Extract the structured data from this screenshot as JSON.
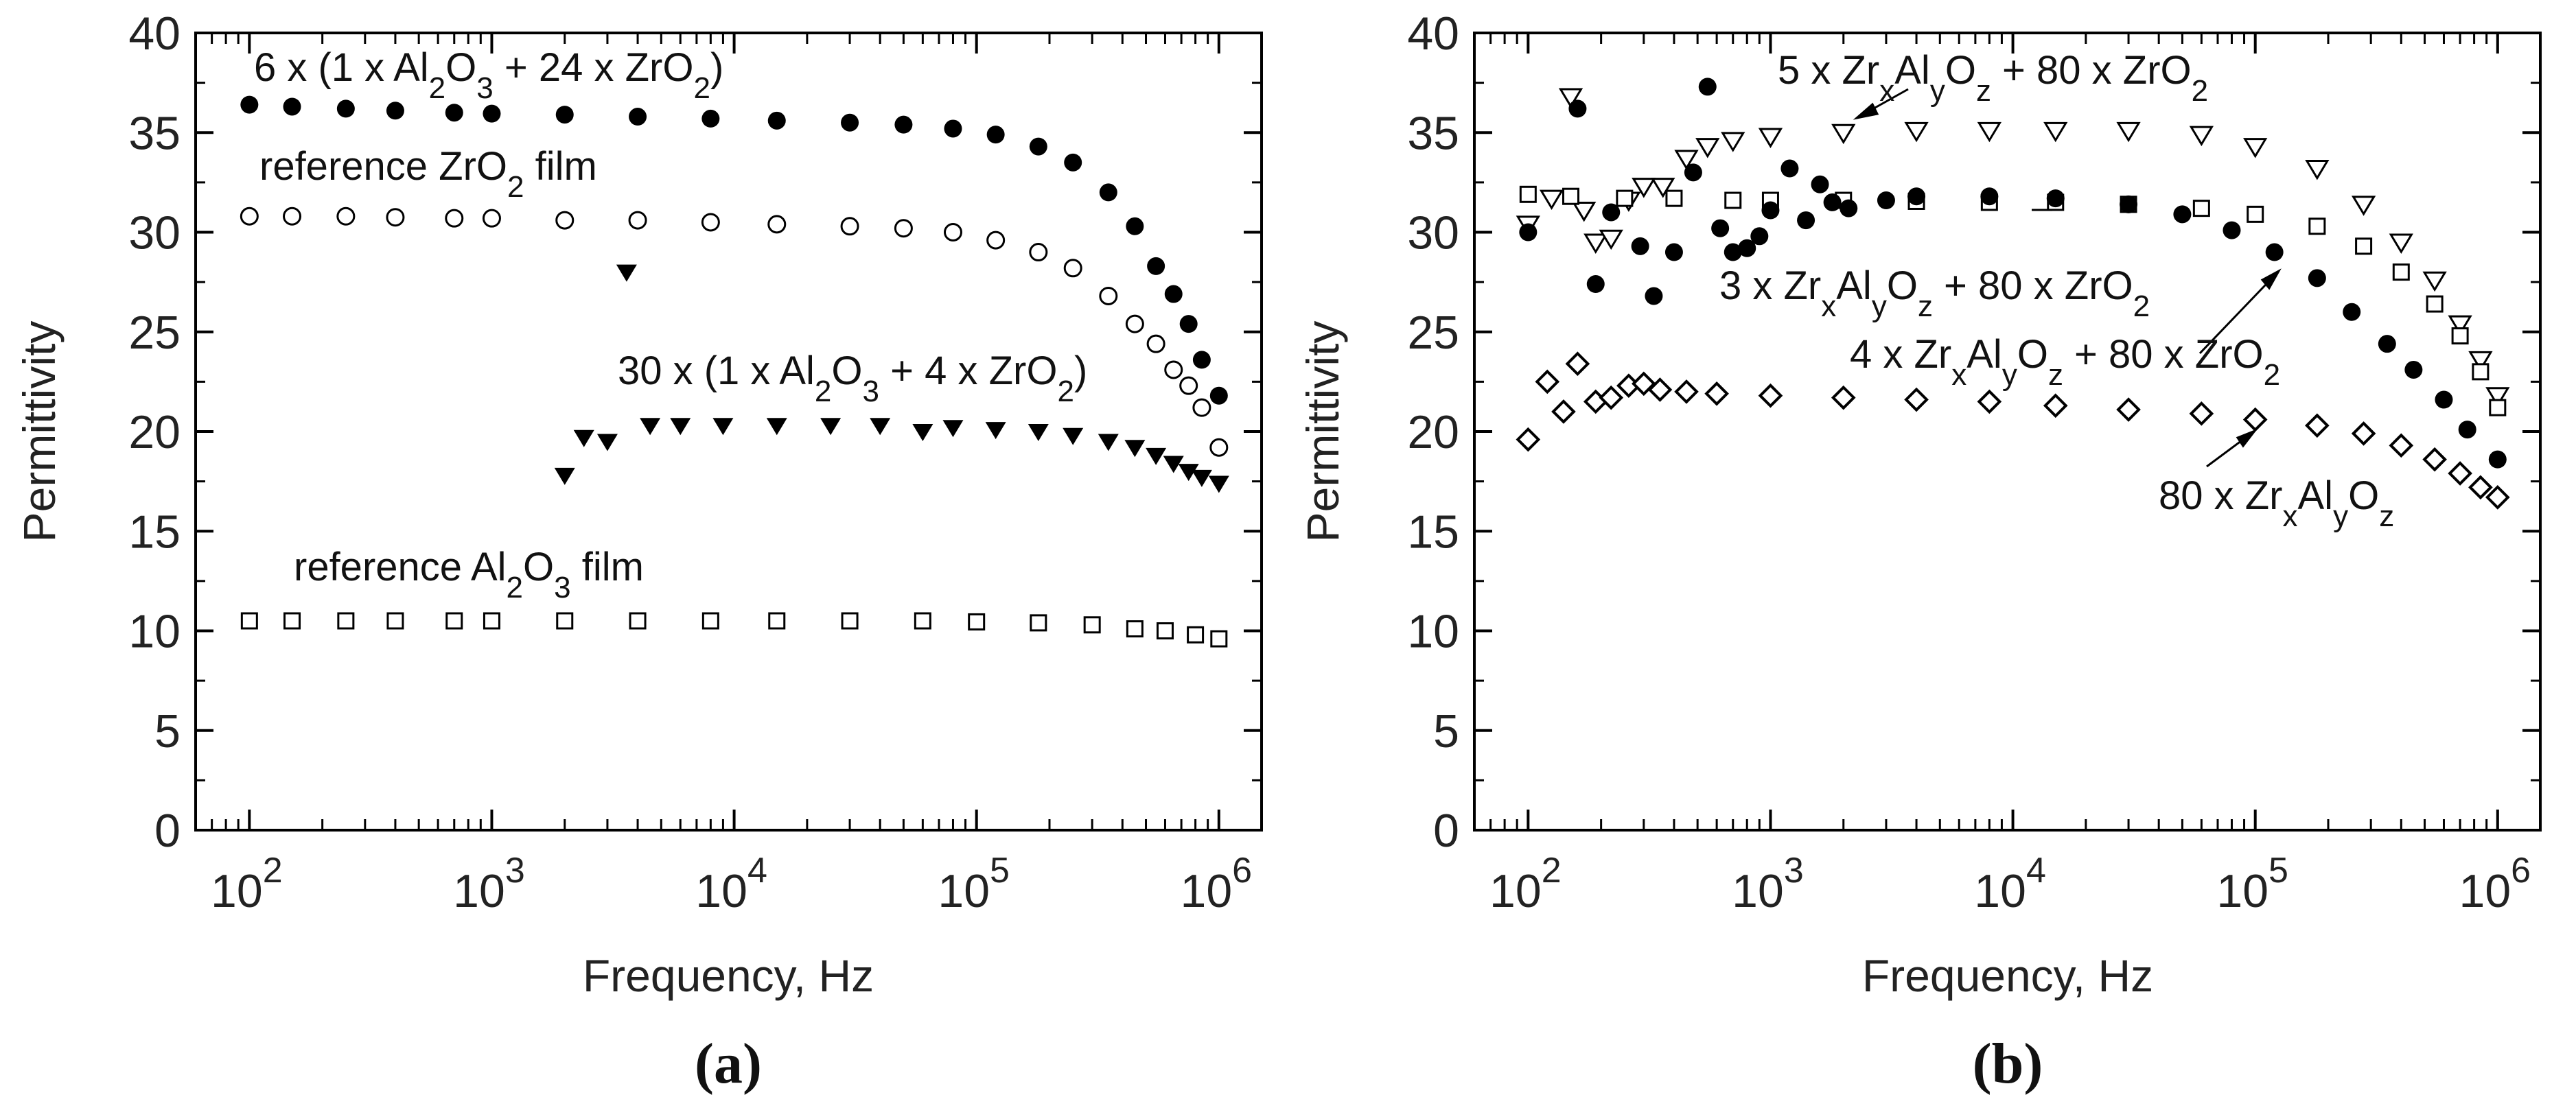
{
  "chart_data": [
    {
      "type": "scatter",
      "panel_label": "(a)",
      "xlabel": "Frequency, Hz",
      "ylabel": "Permittivity",
      "xscale": "log",
      "xlim": [
        60,
        1500000
      ],
      "ylim": [
        0,
        40
      ],
      "yticks": [
        0,
        5,
        10,
        15,
        20,
        25,
        30,
        35,
        40
      ],
      "xticks": [
        {
          "value": 100,
          "base": "10",
          "exp": "2"
        },
        {
          "value": 1000,
          "base": "10",
          "exp": "3"
        },
        {
          "value": 10000,
          "base": "10",
          "exp": "4"
        },
        {
          "value": 100000,
          "base": "10",
          "exp": "5"
        },
        {
          "value": 1000000,
          "base": "10",
          "exp": "6"
        }
      ],
      "series": [
        {
          "name": "6 x (1 x Al2O3 + 24 x ZrO2)",
          "marker": "filled-circle",
          "points": [
            [
              100,
              36.4
            ],
            [
              150,
              36.3
            ],
            [
              250,
              36.2
            ],
            [
              400,
              36.1
            ],
            [
              700,
              36.0
            ],
            [
              1000,
              35.95
            ],
            [
              2000,
              35.9
            ],
            [
              4000,
              35.8
            ],
            [
              8000,
              35.7
            ],
            [
              15000,
              35.6
            ],
            [
              30000,
              35.5
            ],
            [
              50000,
              35.4
            ],
            [
              80000,
              35.2
            ],
            [
              120000,
              34.9
            ],
            [
              180000,
              34.3
            ],
            [
              250000,
              33.5
            ],
            [
              350000,
              32.0
            ],
            [
              450000,
              30.3
            ],
            [
              550000,
              28.3
            ],
            [
              650000,
              26.9
            ],
            [
              750000,
              25.4
            ],
            [
              850000,
              23.6
            ],
            [
              1000000,
              21.8
            ]
          ]
        },
        {
          "name": "reference ZrO2 film",
          "marker": "open-circle",
          "points": [
            [
              100,
              30.8
            ],
            [
              150,
              30.8
            ],
            [
              250,
              30.8
            ],
            [
              400,
              30.75
            ],
            [
              700,
              30.7
            ],
            [
              1000,
              30.7
            ],
            [
              2000,
              30.6
            ],
            [
              4000,
              30.6
            ],
            [
              8000,
              30.5
            ],
            [
              15000,
              30.4
            ],
            [
              30000,
              30.3
            ],
            [
              50000,
              30.2
            ],
            [
              80000,
              30.0
            ],
            [
              120000,
              29.6
            ],
            [
              180000,
              29.0
            ],
            [
              250000,
              28.2
            ],
            [
              350000,
              26.8
            ],
            [
              450000,
              25.4
            ],
            [
              550000,
              24.4
            ],
            [
              650000,
              23.1
            ],
            [
              750000,
              22.3
            ],
            [
              850000,
              21.2
            ],
            [
              1000000,
              19.2
            ]
          ]
        },
        {
          "name": "30 x (1 x Al2O3 + 4 x ZrO2)",
          "marker": "filled-triangle-down",
          "points": [
            [
              2000,
              17.8
            ],
            [
              2400,
              19.7
            ],
            [
              3000,
              19.5
            ],
            [
              3600,
              28.0
            ],
            [
              4500,
              20.3
            ],
            [
              6000,
              20.3
            ],
            [
              9000,
              20.3
            ],
            [
              15000,
              20.3
            ],
            [
              25000,
              20.3
            ],
            [
              40000,
              20.3
            ],
            [
              60000,
              20.0
            ],
            [
              80000,
              20.2
            ],
            [
              120000,
              20.1
            ],
            [
              180000,
              20.0
            ],
            [
              250000,
              19.8
            ],
            [
              350000,
              19.5
            ],
            [
              450000,
              19.2
            ],
            [
              550000,
              18.8
            ],
            [
              650000,
              18.4
            ],
            [
              750000,
              18.0
            ],
            [
              850000,
              17.7
            ],
            [
              1000000,
              17.4
            ]
          ]
        },
        {
          "name": "reference Al2O3 film",
          "marker": "open-square",
          "points": [
            [
              100,
              10.5
            ],
            [
              150,
              10.5
            ],
            [
              250,
              10.5
            ],
            [
              400,
              10.5
            ],
            [
              700,
              10.5
            ],
            [
              1000,
              10.5
            ],
            [
              2000,
              10.5
            ],
            [
              4000,
              10.5
            ],
            [
              8000,
              10.5
            ],
            [
              15000,
              10.5
            ],
            [
              30000,
              10.5
            ],
            [
              60000,
              10.5
            ],
            [
              100000,
              10.45
            ],
            [
              180000,
              10.4
            ],
            [
              300000,
              10.3
            ],
            [
              450000,
              10.1
            ],
            [
              600000,
              10.0
            ],
            [
              800000,
              9.8
            ],
            [
              1000000,
              9.6
            ]
          ]
        }
      ],
      "annotations": [
        {
          "id": "a1",
          "pre": "6 x (1 x Al",
          "sub1": "2",
          "mid1": "O",
          "sub2": "3",
          "mid2": " + 24 x ZrO",
          "sub3": "2",
          "post": ")"
        },
        {
          "id": "a2",
          "pre": "reference ZrO",
          "sub1": "2",
          "post": " film"
        },
        {
          "id": "a3",
          "pre": "30 x (1 x Al",
          "sub1": "2",
          "mid1": "O",
          "sub2": "3",
          "mid2": " + 4 x ZrO",
          "sub3": "2",
          "post": ")"
        },
        {
          "id": "a4",
          "pre": "reference Al",
          "sub1": "2",
          "mid1": "O",
          "sub2": "3",
          "post": " film"
        }
      ]
    },
    {
      "type": "scatter",
      "panel_label": "(b)",
      "xlabel": "Frequency, Hz",
      "ylabel": "Permittivity",
      "xscale": "log",
      "xlim": [
        60,
        1500000
      ],
      "ylim": [
        0,
        40
      ],
      "yticks": [
        0,
        5,
        10,
        15,
        20,
        25,
        30,
        35,
        40
      ],
      "xticks": [
        {
          "value": 100,
          "base": "10",
          "exp": "2"
        },
        {
          "value": 1000,
          "base": "10",
          "exp": "3"
        },
        {
          "value": 10000,
          "base": "10",
          "exp": "4"
        },
        {
          "value": 100000,
          "base": "10",
          "exp": "5"
        },
        {
          "value": 1000000,
          "base": "10",
          "exp": "6"
        }
      ],
      "series": [
        {
          "name": "5 x ZrxAlyOz + 80 x ZrO2",
          "marker": "open-triangle-down",
          "points": [
            [
              100,
              30.4
            ],
            [
              125,
              31.7
            ],
            [
              150,
              36.8
            ],
            [
              170,
              31.1
            ],
            [
              190,
              29.5
            ],
            [
              220,
              29.7
            ],
            [
              260,
              31.6
            ],
            [
              300,
              32.3
            ],
            [
              360,
              32.3
            ],
            [
              450,
              33.7
            ],
            [
              550,
              34.3
            ],
            [
              700,
              34.6
            ],
            [
              1000,
              34.8
            ],
            [
              2000,
              35.0
            ],
            [
              4000,
              35.1
            ],
            [
              8000,
              35.1
            ],
            [
              15000,
              35.1
            ],
            [
              30000,
              35.1
            ],
            [
              60000,
              34.9
            ],
            [
              100000,
              34.3
            ],
            [
              180000,
              33.2
            ],
            [
              280000,
              31.4
            ],
            [
              400000,
              29.5
            ],
            [
              550000,
              27.6
            ],
            [
              700000,
              25.4
            ],
            [
              850000,
              23.6
            ],
            [
              1000000,
              21.8
            ]
          ]
        },
        {
          "name": "3 x ZrxAlyOz + 80 x ZrO2",
          "marker": "open-square",
          "points": [
            [
              100,
              31.9
            ],
            [
              150,
              31.8
            ],
            [
              250,
              31.7
            ],
            [
              400,
              31.7
            ],
            [
              700,
              31.6
            ],
            [
              1000,
              31.6
            ],
            [
              2000,
              31.6
            ],
            [
              4000,
              31.55
            ],
            [
              8000,
              31.5
            ],
            [
              15000,
              31.5
            ],
            [
              30000,
              31.4
            ],
            [
              60000,
              31.2
            ],
            [
              100000,
              30.9
            ],
            [
              180000,
              30.3
            ],
            [
              280000,
              29.3
            ],
            [
              400000,
              28.0
            ],
            [
              550000,
              26.4
            ],
            [
              700000,
              24.8
            ],
            [
              850000,
              23.0
            ],
            [
              1000000,
              21.2
            ]
          ]
        },
        {
          "name": "4 x ZrxAlyOz + 80 x ZrO2",
          "marker": "filled-circle",
          "points": [
            [
              100,
              30.0
            ],
            [
              160,
              36.2
            ],
            [
              190,
              27.4
            ],
            [
              220,
              31.0
            ],
            [
              290,
              29.3
            ],
            [
              330,
              26.8
            ],
            [
              400,
              29.0
            ],
            [
              480,
              33.0
            ],
            [
              550,
              37.3
            ],
            [
              620,
              30.2
            ],
            [
              700,
              29.0
            ],
            [
              800,
              29.2
            ],
            [
              900,
              29.8
            ],
            [
              1000,
              31.1
            ],
            [
              1200,
              33.2
            ],
            [
              1400,
              30.6
            ],
            [
              1600,
              32.4
            ],
            [
              1800,
              31.5
            ],
            [
              2100,
              31.2
            ],
            [
              3000,
              31.6
            ],
            [
              4000,
              31.8
            ],
            [
              8000,
              31.8
            ],
            [
              15000,
              31.7
            ],
            [
              30000,
              31.4
            ],
            [
              50000,
              30.9
            ],
            [
              80000,
              30.1
            ],
            [
              120000,
              29.0
            ],
            [
              180000,
              27.7
            ],
            [
              250000,
              26.0
            ],
            [
              350000,
              24.4
            ],
            [
              450000,
              23.1
            ],
            [
              600000,
              21.6
            ],
            [
              750000,
              20.1
            ],
            [
              1000000,
              18.6
            ]
          ]
        },
        {
          "name": "80 x ZrxAlyOz",
          "marker": "open-diamond",
          "points": [
            [
              100,
              19.6
            ],
            [
              120,
              22.5
            ],
            [
              140,
              21.0
            ],
            [
              160,
              23.4
            ],
            [
              190,
              21.5
            ],
            [
              220,
              21.7
            ],
            [
              260,
              22.3
            ],
            [
              300,
              22.4
            ],
            [
              350,
              22.1
            ],
            [
              450,
              22.0
            ],
            [
              600,
              21.9
            ],
            [
              1000,
              21.8
            ],
            [
              2000,
              21.7
            ],
            [
              4000,
              21.6
            ],
            [
              8000,
              21.5
            ],
            [
              15000,
              21.3
            ],
            [
              30000,
              21.1
            ],
            [
              60000,
              20.9
            ],
            [
              100000,
              20.6
            ],
            [
              180000,
              20.3
            ],
            [
              280000,
              19.9
            ],
            [
              400000,
              19.3
            ],
            [
              550000,
              18.6
            ],
            [
              700000,
              17.9
            ],
            [
              850000,
              17.2
            ],
            [
              1000000,
              16.7
            ]
          ]
        }
      ],
      "annotations": [
        {
          "id": "b1",
          "pre": "5 x Zr",
          "sub1": "x",
          "mid1": "Al",
          "sub2": "y",
          "mid2": "O",
          "sub3": "z",
          "post": " + 80 x ZrO",
          "sub4": "2"
        },
        {
          "id": "b2",
          "pre": "3 x Zr",
          "sub1": "x",
          "mid1": "Al",
          "sub2": "y",
          "mid2": "O",
          "sub3": "z",
          "post": " + 80 x ZrO",
          "sub4": "2"
        },
        {
          "id": "b3",
          "pre": "4 x Zr",
          "sub1": "x",
          "mid1": "Al",
          "sub2": "y",
          "mid2": "O",
          "sub3": "z",
          "post": " + 80 x ZrO",
          "sub4": "2"
        },
        {
          "id": "b4",
          "pre": "80 x Zr",
          "sub1": "x",
          "mid1": "Al",
          "sub2": "y",
          "mid2": "O",
          "sub3": "z"
        }
      ]
    }
  ]
}
